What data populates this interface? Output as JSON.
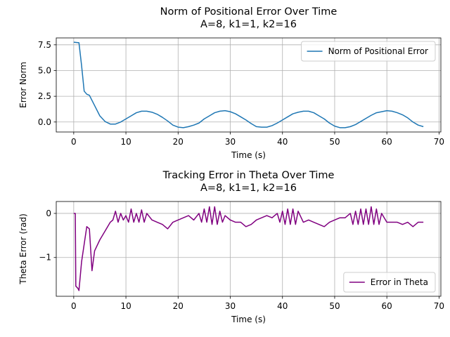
{
  "chart_data": [
    {
      "type": "line",
      "title": "Norm of Positional Error Over Time",
      "subtitle": "A=8, k1=1, k2=16",
      "xlabel": "Time (s)",
      "ylabel": "Error Norm",
      "x": [
        0,
        1,
        1.5,
        2,
        2.5,
        3,
        4,
        5,
        6,
        7,
        8,
        9,
        10,
        11,
        12,
        13,
        14,
        15,
        16,
        17,
        18,
        19,
        20,
        21,
        22,
        23,
        24,
        25,
        26,
        27,
        28,
        29,
        30,
        31,
        32,
        33,
        34,
        35,
        36,
        37,
        38,
        39,
        40,
        41,
        42,
        43,
        44,
        45,
        46,
        47,
        48,
        49,
        50,
        51,
        52,
        53,
        54,
        55,
        56,
        57,
        58,
        59,
        60,
        61,
        62,
        63,
        64,
        65,
        66,
        67
      ],
      "series": [
        {
          "name": "Norm of Positional Error",
          "color": "#1f77b4",
          "values": [
            7.75,
            7.7,
            5.5,
            3.0,
            2.7,
            2.6,
            1.6,
            0.6,
            0.05,
            -0.2,
            -0.2,
            0.0,
            0.3,
            0.6,
            0.9,
            1.05,
            1.05,
            0.95,
            0.75,
            0.45,
            0.1,
            -0.3,
            -0.5,
            -0.55,
            -0.45,
            -0.3,
            -0.1,
            0.3,
            0.6,
            0.9,
            1.05,
            1.1,
            1.0,
            0.8,
            0.5,
            0.2,
            -0.15,
            -0.45,
            -0.5,
            -0.5,
            -0.35,
            -0.1,
            0.2,
            0.5,
            0.8,
            0.95,
            1.05,
            1.05,
            0.9,
            0.6,
            0.3,
            -0.1,
            -0.4,
            -0.55,
            -0.55,
            -0.45,
            -0.25,
            0.05,
            0.35,
            0.65,
            0.9,
            1.0,
            1.1,
            1.05,
            0.9,
            0.7,
            0.4,
            0.0,
            -0.3,
            -0.45
          ]
        }
      ],
      "xlim": [
        -3.35,
        70.35
      ],
      "xticks": [
        0,
        10,
        20,
        30,
        40,
        50,
        60,
        70
      ],
      "ylim": [
        -0.97,
        8.17
      ],
      "yticks": [
        {
          "value": 0,
          "label": "0.0"
        },
        2.5,
        {
          "value": 5,
          "label": "5.0"
        },
        7.5
      ],
      "grid": true,
      "legend": "upper right"
    },
    {
      "type": "line",
      "title": "Tracking Error in Theta Over Time",
      "subtitle": "A=8, k1=1, k2=16",
      "xlabel": "Time (s)",
      "ylabel": "Theta Error (rad)",
      "x": [
        0,
        0.3,
        0.4,
        0.8,
        1,
        1.5,
        2,
        2.5,
        3,
        3.5,
        4,
        5,
        6,
        7,
        7.5,
        8,
        8.5,
        9,
        9.5,
        10,
        10.5,
        11,
        11.5,
        12,
        12.5,
        13,
        13.5,
        14,
        15,
        16,
        17,
        18,
        19,
        20,
        21,
        22,
        23,
        24,
        24.5,
        25,
        25.5,
        26,
        26.5,
        27,
        27.5,
        28,
        28.5,
        29,
        30,
        31,
        32,
        33,
        34,
        35,
        36,
        37,
        38,
        39,
        39.5,
        40,
        40.5,
        41,
        41.5,
        42,
        42.5,
        43,
        44,
        45,
        46,
        47,
        48,
        49,
        50,
        51,
        52,
        53,
        53.5,
        54,
        54.5,
        55,
        55.5,
        56,
        56.5,
        57,
        57.5,
        58,
        58.5,
        59,
        60,
        61,
        62,
        63,
        64,
        65,
        66,
        67
      ],
      "series": [
        {
          "name": "Error in Theta",
          "color": "#800080",
          "values": [
            0,
            0,
            -1.65,
            -1.7,
            -1.75,
            -1.1,
            -0.7,
            -0.3,
            -0.35,
            -1.3,
            -0.85,
            -0.6,
            -0.4,
            -0.2,
            -0.15,
            0.05,
            -0.2,
            0.0,
            -0.15,
            -0.05,
            -0.2,
            0.1,
            -0.2,
            0.0,
            -0.2,
            0.08,
            -0.2,
            0.0,
            -0.15,
            -0.2,
            -0.25,
            -0.35,
            -0.2,
            -0.15,
            -0.1,
            -0.05,
            -0.15,
            0.0,
            -0.2,
            0.1,
            -0.2,
            0.15,
            -0.25,
            0.15,
            -0.25,
            0.05,
            -0.2,
            -0.05,
            -0.15,
            -0.2,
            -0.2,
            -0.3,
            -0.25,
            -0.15,
            -0.1,
            -0.05,
            -0.1,
            0.0,
            -0.2,
            0.05,
            -0.25,
            0.1,
            -0.25,
            0.1,
            -0.25,
            0.05,
            -0.2,
            -0.15,
            -0.2,
            -0.25,
            -0.3,
            -0.2,
            -0.15,
            -0.1,
            -0.1,
            0.0,
            -0.25,
            0.05,
            -0.25,
            0.1,
            -0.25,
            0.1,
            -0.25,
            0.15,
            -0.25,
            0.1,
            -0.25,
            0.0,
            -0.2,
            -0.2,
            -0.2,
            -0.25,
            -0.2,
            -0.3,
            -0.2,
            -0.2
          ]
        }
      ],
      "xlim": [
        -3.35,
        70.35
      ],
      "xticks": [
        0,
        10,
        20,
        30,
        40,
        50,
        60,
        70
      ],
      "ylim": [
        -1.88,
        0.27
      ],
      "yticks": [
        {
          "value": -1,
          "label": "−1"
        },
        0
      ],
      "grid": true,
      "legend": "lower right"
    }
  ]
}
